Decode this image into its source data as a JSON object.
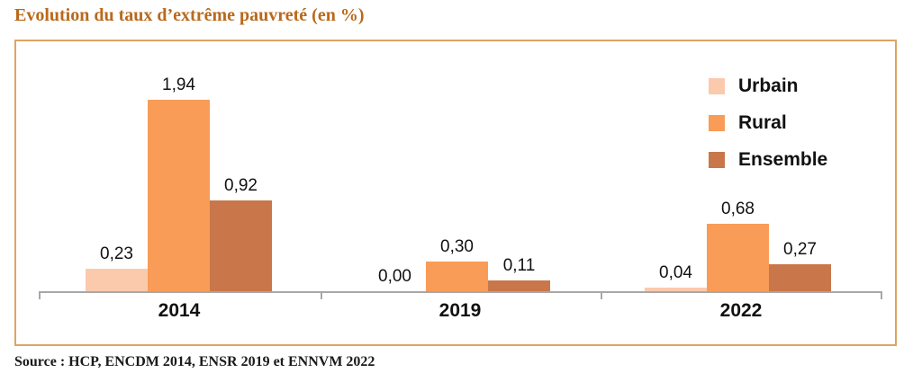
{
  "title": "Evolution du taux d’extrême pauvreté (en %)",
  "source": "Source : HCP, ENCDM 2014, ENSR 2019 et ENNVM 2022",
  "colors": {
    "title_text": "#b9691b",
    "frame_border": "#dda45f",
    "axis": "#a8a8a8",
    "label_text": "#111111",
    "urbain": "#fbcaad",
    "rural": "#f99c57",
    "ensemble": "#c9764a"
  },
  "chart_data": {
    "type": "bar",
    "title": "Evolution du taux d’extrême pauvreté (en %)",
    "categories": [
      "2014",
      "2019",
      "2022"
    ],
    "series": [
      {
        "name": "Urbain",
        "color": "#fbcaad",
        "values": [
          0.23,
          0.0,
          0.04
        ],
        "value_labels": [
          "0,23",
          "0,00",
          "0,04"
        ]
      },
      {
        "name": "Rural",
        "color": "#f99c57",
        "values": [
          1.94,
          0.3,
          0.68
        ],
        "value_labels": [
          "1,94",
          "0,30",
          "0,68"
        ]
      },
      {
        "name": "Ensemble",
        "color": "#c9764a",
        "values": [
          0.92,
          0.11,
          0.27
        ],
        "value_labels": [
          "0,92",
          "0,11",
          "0,27"
        ]
      }
    ],
    "unit": "%",
    "decimal_separator": ",",
    "ylim": [
      0,
      2.2
    ],
    "grid": false,
    "y_axis_visible": false,
    "legend_position": "top-right",
    "xlabel": "",
    "ylabel": ""
  }
}
